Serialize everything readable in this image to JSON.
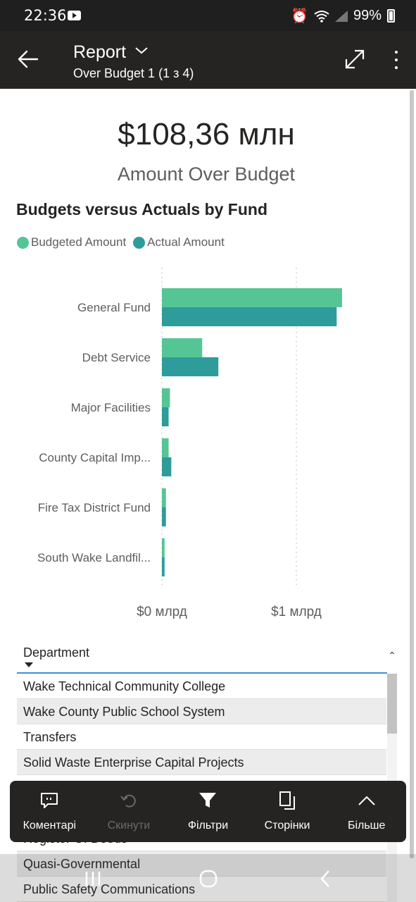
{
  "status_bar": {
    "time": "22:36",
    "battery": "99%"
  },
  "header": {
    "title": "Report",
    "subtitle": "Over Budget 1 (1 з 4)"
  },
  "kpi": {
    "value": "$108,36 млн",
    "label": "Amount Over Budget"
  },
  "chart_data": {
    "type": "bar",
    "orientation": "horizontal",
    "title": "Budgets versus Actuals by Fund",
    "categories": [
      "General Fund",
      "Debt Service",
      "Major Facilities",
      "County Capital Imp...",
      "Fire Tax District Fund",
      "South Wake Landfil..."
    ],
    "series": [
      {
        "name": "Budgeted Amount",
        "color": "#56c596",
        "values": [
          1.34,
          0.3,
          0.06,
          0.05,
          0.03,
          0.02
        ]
      },
      {
        "name": "Actual Amount",
        "color": "#2e9c9a",
        "values": [
          1.3,
          0.42,
          0.05,
          0.07,
          0.03,
          0.02
        ]
      }
    ],
    "xlim": [
      0,
      1.4
    ],
    "xticks": [
      {
        "value": 0,
        "label": "$0 млрд"
      },
      {
        "value": 1,
        "label": "$1 млрд"
      }
    ],
    "grid": true,
    "legend": "top-left"
  },
  "slicer": {
    "label": "Department",
    "items": [
      "Wake Technical Community College",
      "Wake County Public School System",
      "Transfers",
      "Solid Waste Enterprise Capital Projects",
      "",
      "",
      "Register Of Deeds",
      "Quasi-Governmental",
      "Public Safety Communications"
    ]
  },
  "actions": {
    "comments": "Коментарі",
    "undo": "Скинути",
    "filters": "Фільтри",
    "pages": "Сторінки",
    "more": "Більше"
  }
}
